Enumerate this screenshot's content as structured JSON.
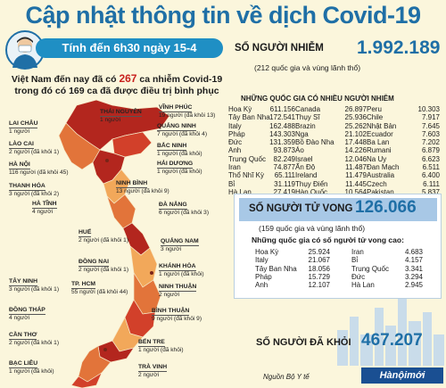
{
  "title": "Cập nhật thông tin về dịch Covid-19",
  "banner": "Tính đến 6h30 ngày 15-4",
  "vietnam": {
    "line1_pre": "Việt Nam đến nay đã có",
    "line1_num": "267",
    "line1_post": "ca nhiễm Covid-19",
    "line2": "trong đó có 169 ca đã được điều trị bình phục"
  },
  "provinces": [
    {
      "name": "THÁI NGUYÊN",
      "detail": "1 người"
    },
    {
      "name": "VĨNH PHÚC",
      "detail": "19 người (đã khỏi 13)"
    },
    {
      "name": "LAI CHÂU",
      "detail": "1 người"
    },
    {
      "name": "QUẢNG NINH",
      "detail": "7 người (đã khỏi 4)"
    },
    {
      "name": "LÀO CAI",
      "detail": "2 người (đã khỏi 1)"
    },
    {
      "name": "BẮC NINH",
      "detail": "1 người (đã khỏi)"
    },
    {
      "name": "HÀ NỘI",
      "detail": "116 người (đã khỏi 45)"
    },
    {
      "name": "HẢI DƯƠNG",
      "detail": "1 người (đã khỏi)"
    },
    {
      "name": "THANH HÓA",
      "detail": "3 người (đã khỏi 2)"
    },
    {
      "name": "NINH BÌNH",
      "detail": "13 người (đã khỏi 9)"
    },
    {
      "name": "HÀ TĨNH",
      "detail": "4 người"
    },
    {
      "name": "ĐÀ NẴNG",
      "detail": "6 người (đã khỏi 3)"
    },
    {
      "name": "HUẾ",
      "detail": "2 người (đã khỏi 1)"
    },
    {
      "name": "QUẢNG NAM",
      "detail": "3 người"
    },
    {
      "name": "ĐỒNG NAI",
      "detail": "2 người (đã khỏi 1)"
    },
    {
      "name": "KHÁNH HÒA",
      "detail": "1 người (đã khỏi)"
    },
    {
      "name": "TÂY NINH",
      "detail": "3 người (đã khỏi 1)"
    },
    {
      "name": "TP. HCM",
      "detail": "55 người (đã khỏi 44)"
    },
    {
      "name": "NINH THUẬN",
      "detail": "2 người"
    },
    {
      "name": "ĐỒNG THÁP",
      "detail": "4 người"
    },
    {
      "name": "BÌNH THUẬN",
      "detail": "9 người (đã khỏi 9)"
    },
    {
      "name": "CẦN THƠ",
      "detail": "2 người (đã khỏi 1)"
    },
    {
      "name": "BẾN TRE",
      "detail": "1 người (đã khỏi)"
    },
    {
      "name": "BẠC LIÊU",
      "detail": "1 người (đã khỏi)"
    },
    {
      "name": "TRÀ VINH",
      "detail": "2 người"
    }
  ],
  "infected": {
    "heading": "SỐ NGƯỜI NHIỄM",
    "number": "1.992.189",
    "sub": "(212 quốc gia và vùng lãnh thổ)",
    "table_heading": "NHỮNG QUỐC GIA CÓ NHIỀU NGƯỜI NHIỄM",
    "rows": [
      [
        "Hoa Kỳ",
        "611.156",
        "Canada",
        "26.897",
        "Peru",
        "10.303"
      ],
      [
        "Tây Ban Nha",
        "172.541",
        "Thụy Sĩ",
        "25.936",
        "Chile",
        "7.917"
      ],
      [
        "Italy",
        "162.488",
        "Brazin",
        "25.262",
        "Nhật Bản",
        "7.645"
      ],
      [
        "Pháp",
        "143.303",
        "Nga",
        "21.102",
        "Ecuador",
        "7.603"
      ],
      [
        "Đức",
        "131.359",
        "Bồ Đào Nha",
        "17.448",
        "Ba Lan",
        "7.202"
      ],
      [
        "Anh",
        "93.873",
        "Áo",
        "14.226",
        "Rumani",
        "6.879"
      ],
      [
        "Trung Quốc",
        "82.249",
        "Israel",
        "12.046",
        "Na Uy",
        "6.623"
      ],
      [
        "Iran",
        "74.877",
        "Ấn Độ",
        "11.487",
        "Đan Mạch",
        "6.511"
      ],
      [
        "Thổ Nhĩ Kỳ",
        "65.111",
        "Ireland",
        "11.479",
        "Australia",
        "6.400"
      ],
      [
        "Bỉ",
        "31.119",
        "Thụy Điển",
        "11.445",
        "Czech",
        "6.111"
      ],
      [
        "Hà Lan",
        "27.419",
        "Hàn Quốc",
        "10.564",
        "Pakistan",
        "5.837"
      ]
    ]
  },
  "deaths": {
    "heading": "SỐ NGƯỜI TỬ VONG",
    "number": "126.066",
    "sub": "(159 quốc gia và vùng lãnh thổ)",
    "table_heading": "Những quốc gia có số người tử vong cao:",
    "rows": [
      [
        "Hoa Kỳ",
        "25.924",
        "Iran",
        "4.683"
      ],
      [
        "Italy",
        "21.067",
        "Bỉ",
        "4.157"
      ],
      [
        "Tây Ban Nha",
        "18.056",
        "Trung Quốc",
        "3.341"
      ],
      [
        "Pháp",
        "15.729",
        "Đức",
        "3.294"
      ],
      [
        "Anh",
        "12.107",
        "Hà Lan",
        "2.945"
      ]
    ]
  },
  "recovered": {
    "heading": "SỐ NGƯỜI ĐÃ KHỎI",
    "number": "467.207"
  },
  "source": "Nguồn Bộ Y tế",
  "logo": "Hànộimới",
  "colors": {
    "title": "#1f6fa6",
    "highlight": "#c8201d",
    "map_dark": "#b3261e",
    "map_mid": "#e2743a",
    "map_light": "#f2a85a",
    "banner": "#1f8fc4"
  }
}
